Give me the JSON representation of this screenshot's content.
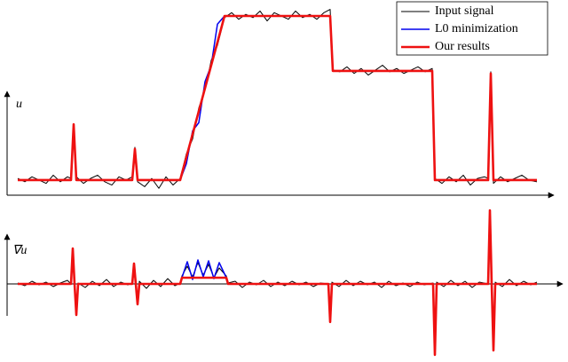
{
  "chart_data": [
    {
      "type": "line",
      "ylabel": "u",
      "xlim": [
        0,
        585
      ],
      "ylim": [
        -0.092,
        1.0
      ],
      "legend": "upper right",
      "x": [
        0,
        8,
        16,
        24,
        32,
        40,
        48,
        56,
        60,
        63,
        66,
        74,
        82,
        90,
        98,
        106,
        114,
        122,
        129,
        132,
        135,
        143,
        151,
        159,
        167,
        175,
        183,
        190,
        197,
        204,
        211,
        218,
        225,
        233,
        241,
        249,
        257,
        265,
        273,
        281,
        289,
        297,
        305,
        313,
        321,
        329,
        337,
        345,
        352,
        355,
        363,
        371,
        379,
        387,
        395,
        403,
        411,
        419,
        427,
        435,
        443,
        451,
        459,
        467,
        470,
        478,
        486,
        494,
        502,
        510,
        518,
        526,
        530,
        533,
        536,
        544,
        552,
        560,
        568,
        576,
        585
      ],
      "series": [
        {
          "name": "Input signal",
          "color": "#000000",
          "values": [
            0.01,
            -0.01,
            0.02,
            0,
            -0.02,
            0.03,
            -0.01,
            0.02,
            0.01,
            0.32,
            0.02,
            -0.02,
            0.01,
            0.03,
            -0.01,
            -0.03,
            0.02,
            0,
            0.02,
            0.2,
            -0.01,
            -0.04,
            0.01,
            -0.05,
            0.02,
            -0.03,
            0.01,
            0.16,
            0.25,
            0.44,
            0.55,
            0.73,
            0.82,
            0.99,
            1.02,
            0.98,
            1.01,
            0.99,
            1.03,
            0.97,
            1.02,
            1.0,
            0.98,
            1.03,
            0.99,
            1.01,
            0.98,
            1.02,
            1.04,
            0.67,
            0.66,
            0.69,
            0.65,
            0.68,
            0.64,
            0.67,
            0.7,
            0.66,
            0.68,
            0.65,
            0.67,
            0.69,
            0.66,
            0.68,
            0.01,
            -0.02,
            0.02,
            -0.01,
            0.03,
            -0.03,
            0.01,
            0.02,
            0.01,
            0.66,
            -0.02,
            0.02,
            -0.01,
            0.01,
            0.03,
            0,
            -0.01
          ]
        },
        {
          "name": "L0 minimization",
          "color": "#0000ee",
          "values": [
            0,
            0,
            0,
            0,
            0,
            0,
            0,
            0,
            0,
            0.34,
            0,
            0,
            0,
            0,
            0,
            0,
            0,
            0,
            0,
            0.19,
            0,
            0,
            0,
            0,
            0,
            0,
            0,
            0.1,
            0.3,
            0.35,
            0.6,
            0.7,
            0.95,
            1,
            1,
            1,
            1,
            1,
            1,
            1,
            1,
            1,
            1,
            1,
            1,
            1,
            1,
            1,
            1,
            0.665,
            0.665,
            0.665,
            0.665,
            0.665,
            0.665,
            0.665,
            0.665,
            0.665,
            0.665,
            0.665,
            0.665,
            0.665,
            0.665,
            0.665,
            0,
            0,
            0,
            0,
            0,
            0,
            0,
            0,
            0,
            0.65,
            0,
            0,
            0,
            0,
            0,
            0,
            0
          ]
        },
        {
          "name": "Our results",
          "color": "#ee1111",
          "values": [
            0,
            0,
            0,
            0,
            0,
            0,
            0,
            0,
            0,
            0.34,
            0,
            0,
            0,
            0,
            0,
            0,
            0,
            0,
            0,
            0.19,
            0,
            0,
            0,
            0,
            0,
            0,
            0,
            0.14,
            0.28,
            0.42,
            0.56,
            0.7,
            0.84,
            1,
            1,
            1,
            1,
            1,
            1,
            1,
            1,
            1,
            1,
            1,
            1,
            1,
            1,
            1,
            1,
            0.665,
            0.665,
            0.665,
            0.665,
            0.665,
            0.665,
            0.665,
            0.665,
            0.665,
            0.665,
            0.665,
            0.665,
            0.665,
            0.665,
            0.665,
            0,
            0,
            0,
            0,
            0,
            0,
            0,
            0,
            0,
            0.65,
            0,
            0,
            0,
            0,
            0,
            0,
            0
          ]
        }
      ]
    },
    {
      "type": "line",
      "ylabel": "∇u",
      "xlim": [
        0,
        585
      ],
      "ylim": [
        -83,
        85
      ],
      "x": [
        0,
        8,
        16,
        24,
        32,
        40,
        48,
        56,
        60,
        62,
        64,
        66,
        68,
        76,
        84,
        92,
        100,
        108,
        116,
        124,
        129,
        131,
        133,
        135,
        137,
        145,
        153,
        161,
        169,
        177,
        183,
        185,
        191,
        197,
        203,
        209,
        215,
        221,
        227,
        235,
        237,
        245,
        253,
        261,
        269,
        277,
        285,
        293,
        301,
        309,
        317,
        325,
        333,
        341,
        350,
        352,
        354,
        362,
        370,
        378,
        386,
        394,
        402,
        410,
        418,
        426,
        434,
        442,
        450,
        458,
        468,
        470,
        472,
        480,
        488,
        496,
        504,
        512,
        520,
        530,
        532,
        534,
        536,
        538,
        546,
        554,
        562,
        570,
        578,
        585
      ],
      "series": [
        {
          "color": "#000000",
          "values": [
            1,
            -2,
            3,
            -1,
            2,
            -3,
            1,
            4,
            0,
            38,
            2,
            -33,
            1,
            -4,
            3,
            -2,
            5,
            -3,
            2,
            -1,
            1,
            21,
            -2,
            -20,
            3,
            -5,
            4,
            -3,
            6,
            -2,
            1,
            9,
            20,
            8,
            24,
            10,
            22,
            7,
            18,
            9,
            1,
            3,
            -4,
            2,
            -1,
            4,
            -3,
            2,
            -2,
            3,
            -1,
            2,
            -3,
            1,
            0,
            -40,
            2,
            -3,
            4,
            -2,
            3,
            -1,
            2,
            -4,
            3,
            -2,
            1,
            -3,
            2,
            -1,
            1,
            -78,
            2,
            -3,
            4,
            -2,
            3,
            -4,
            2,
            0,
            80,
            -1,
            -72,
            2,
            -3,
            5,
            -2,
            3,
            -1,
            2
          ]
        },
        {
          "color": "#0000ee",
          "values": [
            0,
            0,
            0,
            0,
            0,
            0,
            0,
            0,
            0,
            40,
            0,
            -35,
            0,
            0,
            0,
            0,
            0,
            0,
            0,
            0,
            0,
            23,
            0,
            -23,
            0,
            0,
            0,
            0,
            0,
            0,
            0,
            7,
            25,
            5,
            27,
            8,
            26,
            6,
            24,
            7,
            0,
            0,
            0,
            0,
            0,
            0,
            0,
            0,
            0,
            0,
            0,
            0,
            0,
            0,
            0,
            -43,
            0,
            0,
            0,
            0,
            0,
            0,
            0,
            0,
            0,
            0,
            0,
            0,
            0,
            0,
            0,
            -80,
            0,
            0,
            0,
            0,
            0,
            0,
            0,
            0,
            83,
            0,
            -75,
            0,
            0,
            0,
            0,
            0,
            0,
            0
          ]
        },
        {
          "color": "#ee1111",
          "values": [
            0,
            0,
            0,
            0,
            0,
            0,
            0,
            0,
            0,
            40,
            0,
            -35,
            0,
            0,
            0,
            0,
            0,
            0,
            0,
            0,
            0,
            23,
            0,
            -23,
            0,
            0,
            0,
            0,
            0,
            0,
            0,
            7,
            7,
            7,
            7,
            7,
            7,
            7,
            7,
            7,
            0,
            0,
            0,
            0,
            0,
            0,
            0,
            0,
            0,
            0,
            0,
            0,
            0,
            0,
            0,
            -43,
            0,
            0,
            0,
            0,
            0,
            0,
            0,
            0,
            0,
            0,
            0,
            0,
            0,
            0,
            0,
            -80,
            0,
            0,
            0,
            0,
            0,
            0,
            0,
            0,
            83,
            0,
            -75,
            0,
            0,
            0,
            0,
            0,
            0,
            0
          ]
        }
      ]
    }
  ]
}
